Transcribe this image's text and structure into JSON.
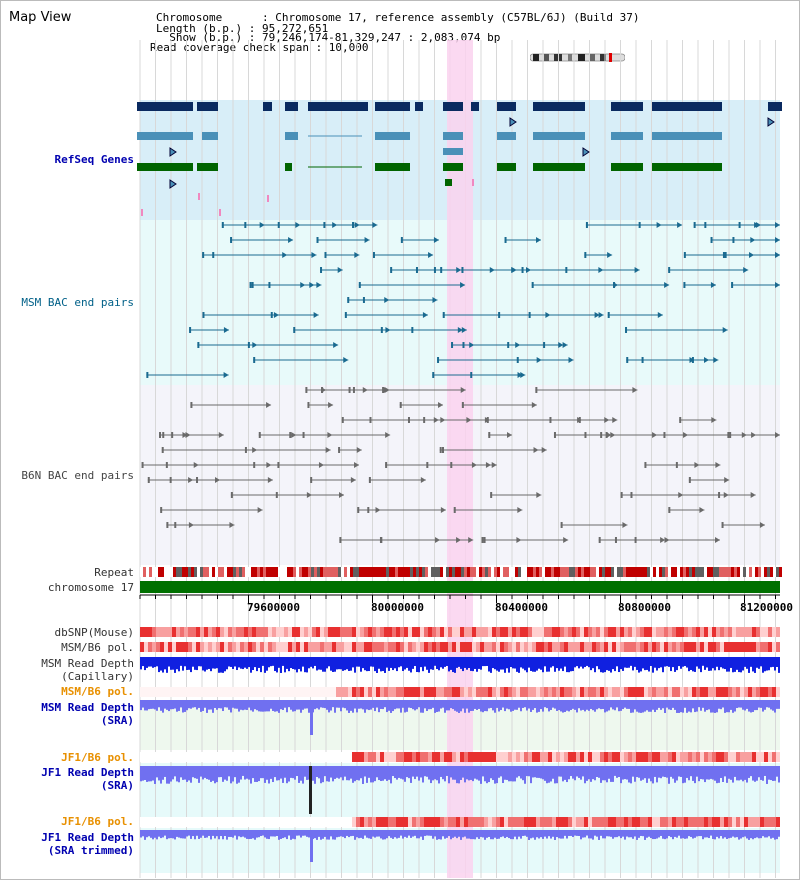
{
  "title": "Map View",
  "header": {
    "chromosome_line": "Chromosome      : Chromosome 17, reference assembly (C57BL/6J) (Build 37)",
    "length_line": "Length (b.p.) : 95,272,651",
    "show_line": "  Show (b.p.) : 79,246,174-81,329,247 : 2,083,074 bp",
    "coverage_line": "Read coverage check span : 10,000"
  },
  "tracks": {
    "refseq": "RefSeq Genes",
    "msm_bac": "MSM BAC end pairs",
    "b6n_bac": "B6N BAC end pairs",
    "repeat": "Repeat",
    "chromosome": "chromosome 17",
    "dbsnp": "dbSNP(Mouse)",
    "msm_pol1": "MSM/B6 pol.",
    "msm_depth_cap_1": "MSM Read Depth",
    "msm_depth_cap_2": "(Capillary)",
    "msm_pol2": "MSM/B6 pol.",
    "msm_depth_sra_1": "MSM Read Depth",
    "msm_depth_sra_2": "(SRA)",
    "jf1_pol1": "JF1/B6 pol.",
    "jf1_depth_1": "JF1 Read Depth",
    "jf1_depth_2": "(SRA)",
    "jf1_pol2": "JF1/B6 pol.",
    "jf1_trim_1": "JF1 Read Depth",
    "jf1_trim_2": "(SRA trimmed)"
  },
  "axis": {
    "ticks": [
      "79600000",
      "80000000",
      "80400000",
      "80800000",
      "81200000"
    ]
  },
  "colors": {
    "refseq_bg": "#d8eef8",
    "bac_bg": "#e8fafa",
    "highlight": "#fad2ef",
    "gene_dark": "#0a2a60",
    "gene_mid": "#4a90b8",
    "gene_green": "#006400",
    "chrom_green": "#007000",
    "depth_blue": "#1020e0",
    "depth_light": "#7070f0"
  }
}
